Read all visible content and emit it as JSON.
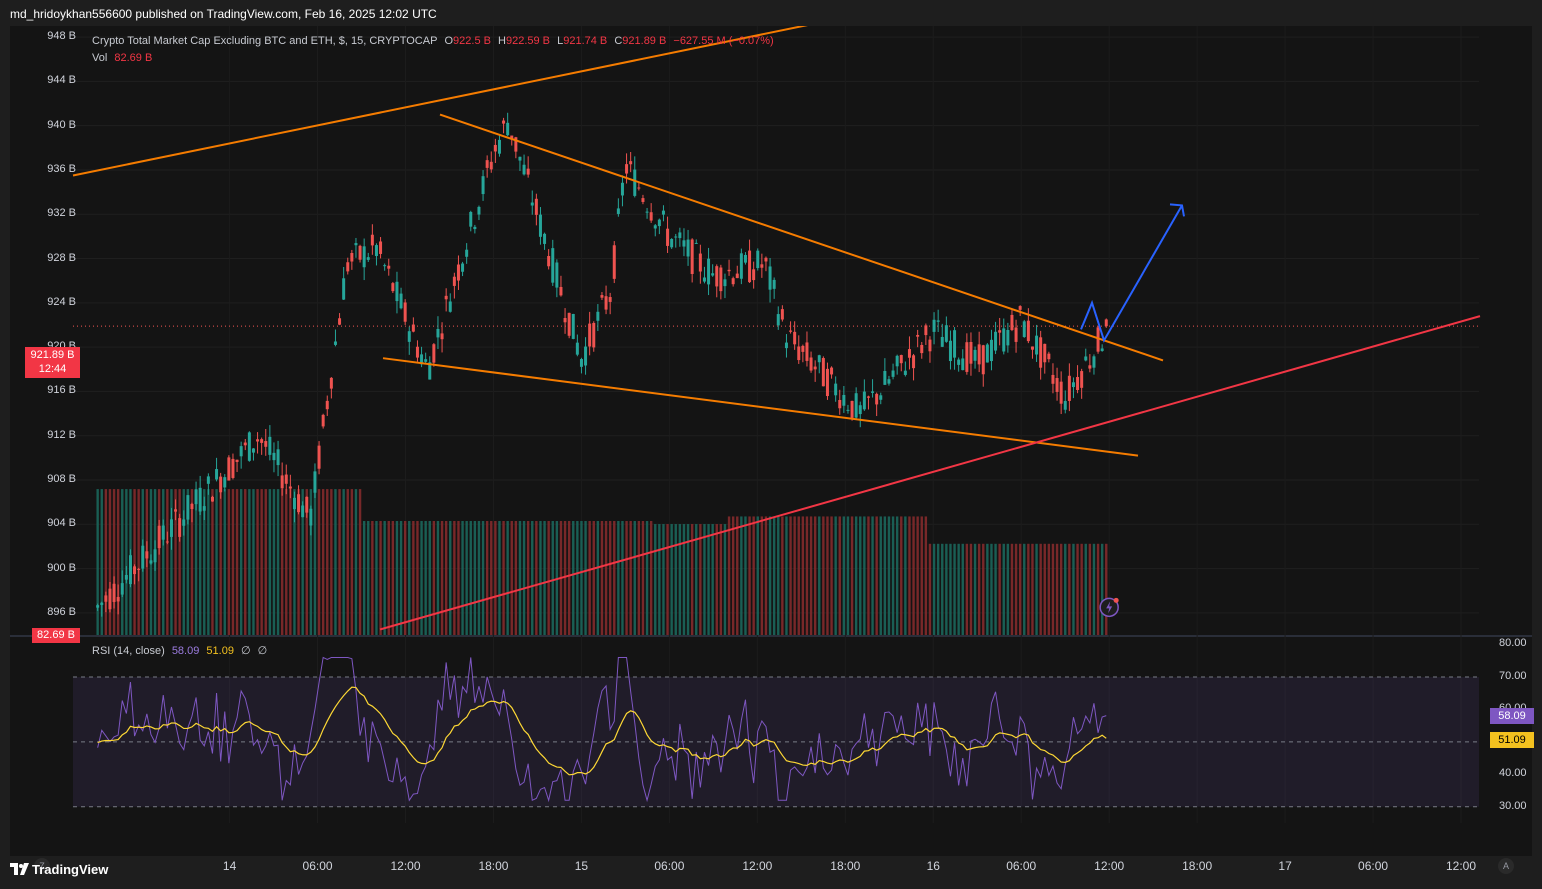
{
  "header": {
    "publisher": "md_hridoykhan556600 published on TradingView.com, Feb 16, 2025 12:02 UTC",
    "symbol_title": "Crypto Total Market Cap Excluding BTC and ETH, $, 15, CRYPTOCAP",
    "o_label": "O",
    "o_value": "922.5 B",
    "h_label": "H",
    "h_value": "922.59 B",
    "l_label": "L",
    "l_value": "921.74 B",
    "c_label": "C",
    "c_value": "921.89 B",
    "change": "−627.55 M (−0.07%)",
    "vol_label": "Vol",
    "vol_value": "82.69 B"
  },
  "badges": {
    "price": "921.89 B",
    "countdown": "12:44",
    "volume": "82.69 B",
    "rsi": "58.09",
    "rsi_ma": "51.09"
  },
  "rsi_legend": {
    "label": "RSI (14, close)",
    "value": "58.09",
    "ma_value": "51.09",
    "extra1": "∅",
    "extra2": "∅"
  },
  "price_axis": [
    "948 B",
    "944 B",
    "940 B",
    "936 B",
    "932 B",
    "928 B",
    "924 B",
    "920 B",
    "916 B",
    "912 B",
    "908 B",
    "904 B",
    "900 B",
    "896 B"
  ],
  "rsi_axis": [
    "80.00",
    "70.00",
    "60.00",
    "40.00",
    "30.00"
  ],
  "time_axis": [
    "14",
    "06:00",
    "12:00",
    "18:00",
    "15",
    "06:00",
    "12:00",
    "18:00",
    "16",
    "06:00",
    "12:00",
    "18:00",
    "17",
    "06:00",
    "12:00"
  ],
  "footer": {
    "brand": "TradingView"
  },
  "buttons": {
    "z": "Z",
    "a": "A"
  },
  "colors": {
    "up": "#26a69a",
    "down": "#ef5350",
    "trendline": "#f57c00",
    "support": "#f23645",
    "projection": "#2962ff",
    "rsi": "#7e57c2",
    "rsi_ma": "#fdd835"
  },
  "chart_data": [
    {
      "type": "candlestick",
      "title": "Crypto Total Market Cap Excluding BTC and ETH, $, 15, CRYPTOCAP",
      "unit": "B",
      "ylim": [
        894,
        949
      ],
      "xlim": [
        "2025-02-13 14:00",
        "2025-02-17 12:00"
      ],
      "last": {
        "open": 922.5,
        "high": 922.59,
        "low": 921.74,
        "close": 921.89
      },
      "key_points": [
        {
          "t": "2025-02-13 15:00",
          "close": 896.5
        },
        {
          "t": "2025-02-14 02:00",
          "close": 912.0
        },
        {
          "t": "2025-02-14 05:30",
          "close": 904.5
        },
        {
          "t": "2025-02-14 08:00",
          "close": 927.5
        },
        {
          "t": "2025-02-14 10:00",
          "close": 929.0
        },
        {
          "t": "2025-02-14 13:30",
          "close": 918.0
        },
        {
          "t": "2025-02-14 18:00",
          "close": 937.5
        },
        {
          "t": "2025-02-14 19:00",
          "close": 940.5
        },
        {
          "t": "2025-02-15 00:00",
          "close": 919.0
        },
        {
          "t": "2025-02-15 02:00",
          "close": 925.0
        },
        {
          "t": "2025-02-15 03:00",
          "close": 936.5
        },
        {
          "t": "2025-02-15 06:00",
          "close": 930.0
        },
        {
          "t": "2025-02-15 09:00",
          "close": 926.5
        },
        {
          "t": "2025-02-15 12:30",
          "close": 927.5
        },
        {
          "t": "2025-02-15 14:00",
          "close": 921.0
        },
        {
          "t": "2025-02-15 19:00",
          "close": 914.0
        },
        {
          "t": "2025-02-15 21:00",
          "close": 917.0
        },
        {
          "t": "2025-02-16 00:00",
          "close": 921.5
        },
        {
          "t": "2025-02-16 03:00",
          "close": 918.5
        },
        {
          "t": "2025-02-16 06:00",
          "close": 922.5
        },
        {
          "t": "2025-02-16 09:00",
          "close": 915.5
        },
        {
          "t": "2025-02-16 12:00",
          "close": 921.89
        }
      ]
    },
    {
      "type": "bar",
      "title": "Vol",
      "unit": "B",
      "series": [
        {
          "name": "Vol",
          "last": 82.69
        }
      ]
    },
    {
      "type": "line",
      "title": "RSI (14, close)",
      "ylim": [
        25,
        82
      ],
      "levels": [
        70,
        50,
        30
      ],
      "series": [
        {
          "name": "RSI",
          "last": 58.09
        },
        {
          "name": "RSI MA",
          "last": 51.09
        }
      ]
    }
  ]
}
